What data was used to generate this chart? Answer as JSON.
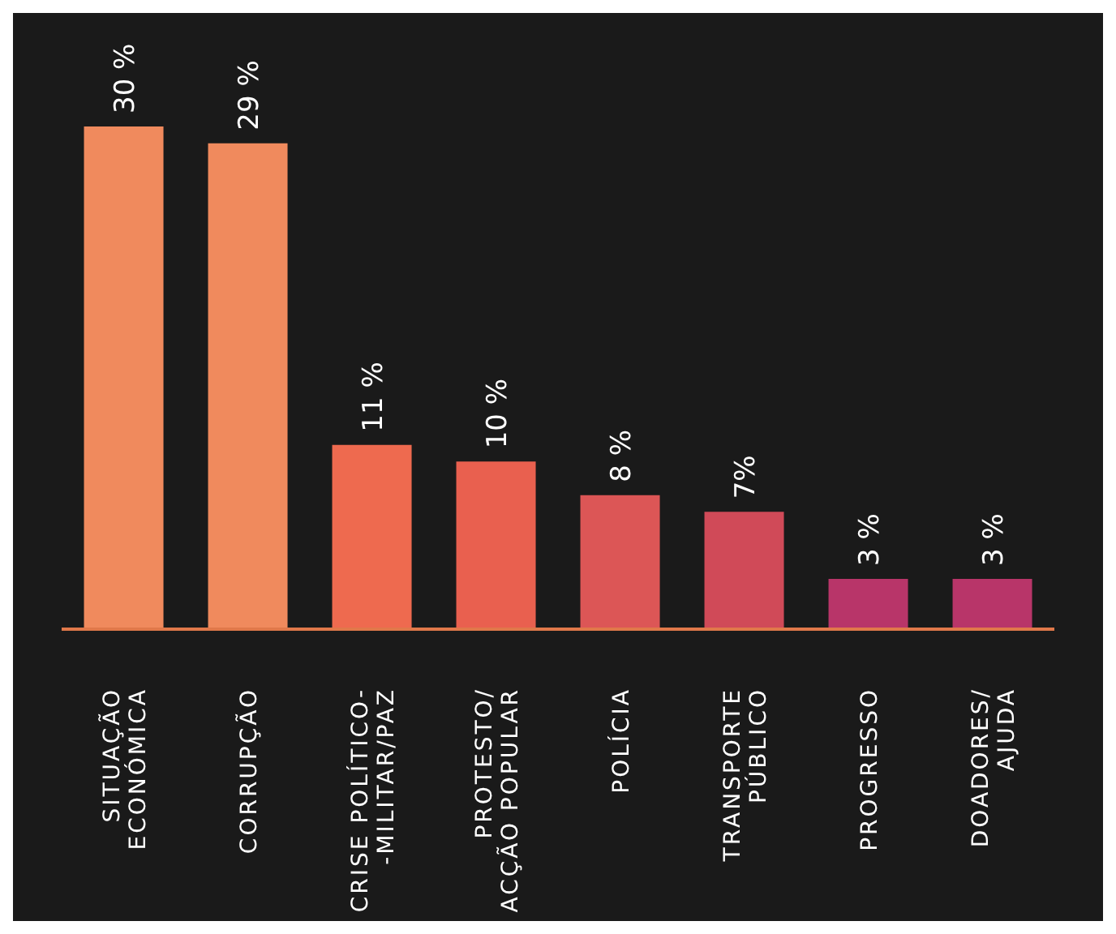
{
  "chart_data": {
    "type": "bar",
    "categories": [
      "SITUAÇÃO\nECONÓMICA",
      "CORRUPÇÃO",
      "CRISE POLÍTICO-\n-MILITAR/PAZ",
      "PROTESTO/\nACÇÃO POPULAR",
      "POLÍCIA",
      "TRANSPORTE\nPÚBLICO",
      "PROGRESSO",
      "DOADORES/\nAJUDA"
    ],
    "values": [
      30,
      29,
      11,
      10,
      8,
      7,
      3,
      3
    ],
    "value_labels": [
      "30 %",
      "29 %",
      "11 %",
      "10 %",
      "8 %",
      "7%",
      "3 %",
      "3 %"
    ],
    "colors": [
      "#f08a5d",
      "#f08a5d",
      "#ee6a4f",
      "#e9604f",
      "#dc5656",
      "#d04a58",
      "#b83569",
      "#b83569"
    ]
  }
}
